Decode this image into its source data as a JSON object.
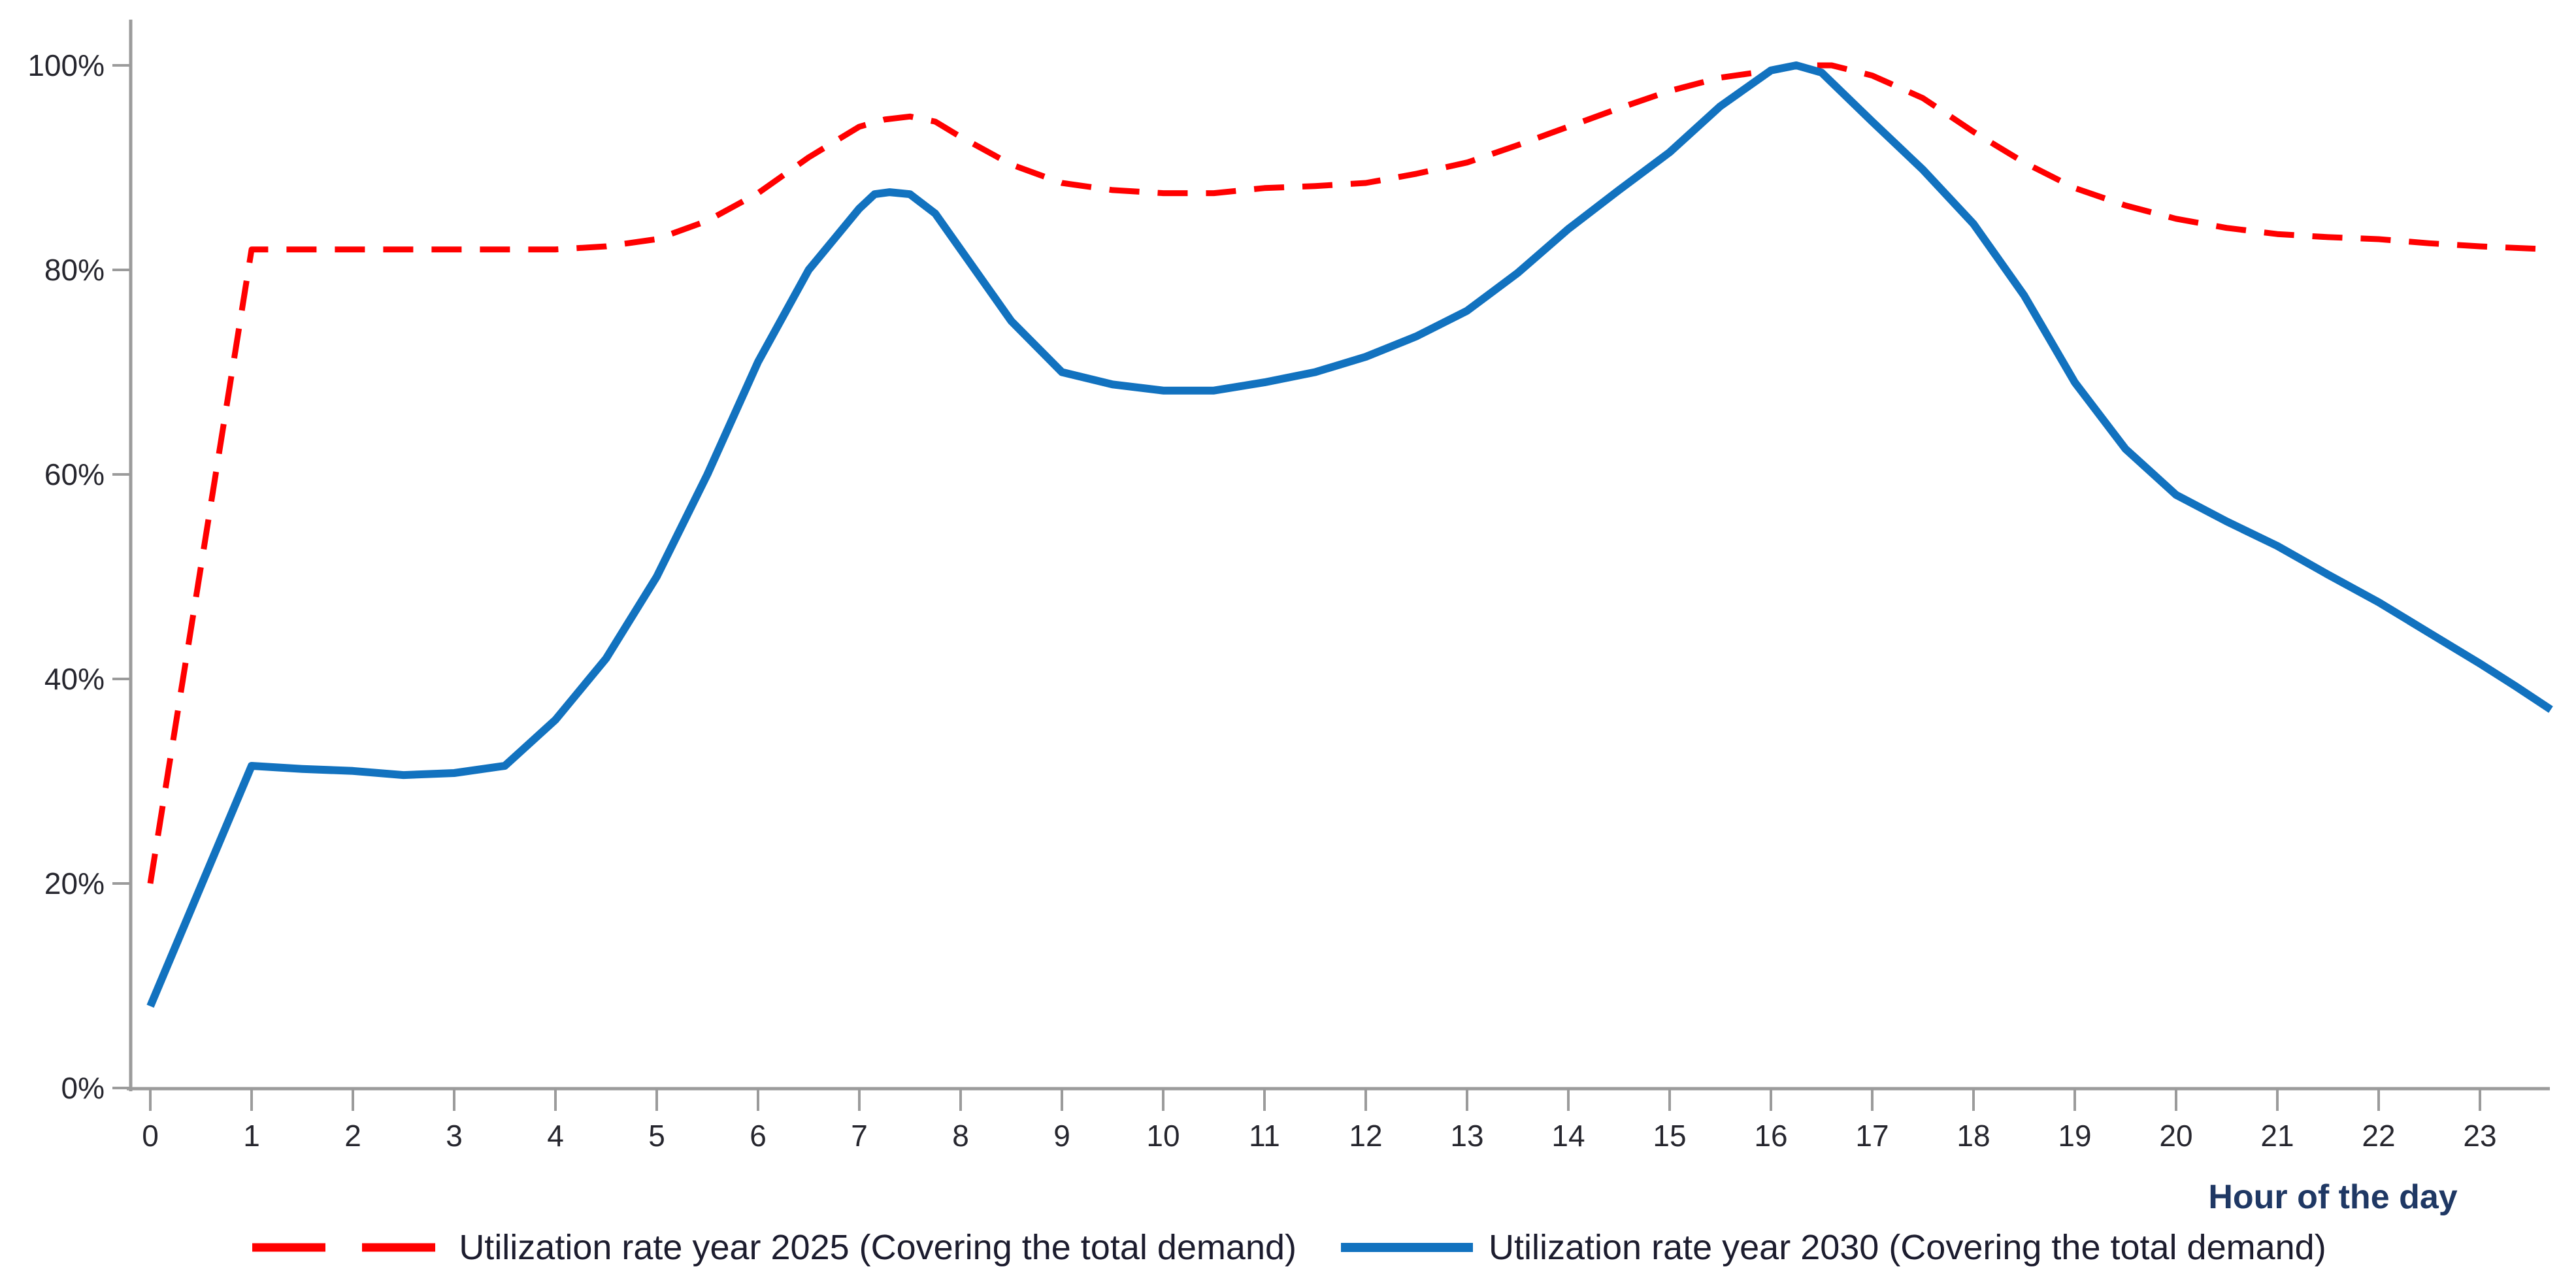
{
  "chart_data": {
    "type": "line",
    "title": "",
    "xlabel": "Hour of the day",
    "ylabel": "",
    "xlim": [
      0,
      23.7
    ],
    "ylim": [
      0,
      100
    ],
    "grid": false,
    "legend_position": "bottom",
    "x": [
      0,
      1,
      2,
      3,
      4,
      5,
      6,
      7,
      8,
      9,
      10,
      11,
      12,
      13,
      14,
      15,
      16,
      17,
      18,
      19,
      20,
      21,
      22,
      23
    ],
    "x_tick_labels": [
      "0",
      "1",
      "2",
      "3",
      "4",
      "5",
      "6",
      "7",
      "8",
      "9",
      "10",
      "11",
      "12",
      "13",
      "14",
      "15",
      "16",
      "17",
      "18",
      "19",
      "20",
      "21",
      "22",
      "23"
    ],
    "y_tick_labels": [
      "0%",
      "20%",
      "40%",
      "60%",
      "80%",
      "100%"
    ],
    "series": [
      {
        "name": "Utilization rate year 2025 (Covering the total demand)",
        "color": "#ff0000",
        "style": "dashed",
        "values": [
          20,
          82,
          82,
          82,
          82,
          83,
          87.5,
          94,
          93,
          88.5,
          87.5,
          88,
          88.5,
          90.5,
          94,
          97.5,
          100,
          99,
          93.5,
          88,
          85,
          83.5,
          83,
          82.3
        ],
        "points": [
          [
            0,
            20
          ],
          [
            1,
            82
          ],
          [
            2,
            82
          ],
          [
            3,
            82
          ],
          [
            4,
            82
          ],
          [
            4.5,
            82.3
          ],
          [
            5,
            83
          ],
          [
            5.5,
            84.8
          ],
          [
            6,
            87.5
          ],
          [
            6.5,
            91
          ],
          [
            7,
            94
          ],
          [
            7.25,
            94.7
          ],
          [
            7.5,
            95
          ],
          [
            7.75,
            94.5
          ],
          [
            8,
            93
          ],
          [
            8.5,
            90.3
          ],
          [
            9,
            88.5
          ],
          [
            9.5,
            87.8
          ],
          [
            10,
            87.5
          ],
          [
            10.5,
            87.5
          ],
          [
            11,
            88
          ],
          [
            11.5,
            88.2
          ],
          [
            12,
            88.5
          ],
          [
            12.5,
            89.4
          ],
          [
            13,
            90.5
          ],
          [
            13.5,
            92.2
          ],
          [
            14,
            94
          ],
          [
            14.5,
            95.8
          ],
          [
            15,
            97.5
          ],
          [
            15.5,
            98.8
          ],
          [
            16,
            99.5
          ],
          [
            16.3,
            100
          ],
          [
            16.6,
            100
          ],
          [
            17,
            99
          ],
          [
            17.5,
            96.8
          ],
          [
            18,
            93.5
          ],
          [
            18.5,
            90.5
          ],
          [
            19,
            88
          ],
          [
            19.5,
            86.3
          ],
          [
            20,
            85
          ],
          [
            20.5,
            84.1
          ],
          [
            21,
            83.5
          ],
          [
            21.5,
            83.2
          ],
          [
            22,
            83
          ],
          [
            22.5,
            82.6
          ],
          [
            23,
            82.3
          ],
          [
            23.7,
            82
          ]
        ]
      },
      {
        "name": "Utilization rate year 2030 (Covering the total demand)",
        "color": "#1272bf",
        "style": "solid",
        "values": [
          8,
          31.5,
          31,
          31,
          36,
          50,
          71,
          87.5,
          82,
          70,
          68.2,
          69,
          71.5,
          76,
          84,
          91.5,
          100,
          94.5,
          84.5,
          69,
          58,
          53,
          47.5,
          41.5
        ],
        "points": [
          [
            0,
            8
          ],
          [
            1,
            31.5
          ],
          [
            1.5,
            31.2
          ],
          [
            2,
            31
          ],
          [
            2.5,
            30.6
          ],
          [
            3,
            30.8
          ],
          [
            3.5,
            31.5
          ],
          [
            4,
            36
          ],
          [
            4.5,
            42
          ],
          [
            5,
            50
          ],
          [
            5.5,
            60
          ],
          [
            6,
            71
          ],
          [
            6.5,
            80
          ],
          [
            7,
            86
          ],
          [
            7.15,
            87.4
          ],
          [
            7.3,
            87.6
          ],
          [
            7.5,
            87.4
          ],
          [
            7.75,
            85.5
          ],
          [
            8,
            82
          ],
          [
            8.5,
            75
          ],
          [
            9,
            70
          ],
          [
            9.5,
            68.8
          ],
          [
            10,
            68.2
          ],
          [
            10.5,
            68.2
          ],
          [
            11,
            69
          ],
          [
            11.5,
            70
          ],
          [
            12,
            71.5
          ],
          [
            12.5,
            73.5
          ],
          [
            13,
            76
          ],
          [
            13.5,
            79.7
          ],
          [
            14,
            84
          ],
          [
            14.5,
            87.8
          ],
          [
            15,
            91.5
          ],
          [
            15.5,
            96
          ],
          [
            16,
            99.5
          ],
          [
            16.25,
            100
          ],
          [
            16.5,
            99.3
          ],
          [
            17,
            94.5
          ],
          [
            17.5,
            89.8
          ],
          [
            18,
            84.5
          ],
          [
            18.5,
            77.5
          ],
          [
            19,
            69
          ],
          [
            19.5,
            62.5
          ],
          [
            20,
            58
          ],
          [
            20.5,
            55.4
          ],
          [
            21,
            53
          ],
          [
            21.5,
            50.2
          ],
          [
            22,
            47.5
          ],
          [
            22.5,
            44.5
          ],
          [
            23,
            41.5
          ],
          [
            23.35,
            39.3
          ],
          [
            23.7,
            37
          ]
        ]
      }
    ]
  },
  "colors": {
    "axis": "#9b9b9b",
    "tick_text": "#26262e",
    "x_title_text": "#1f3864",
    "legend_text": "#1c1c2e"
  }
}
